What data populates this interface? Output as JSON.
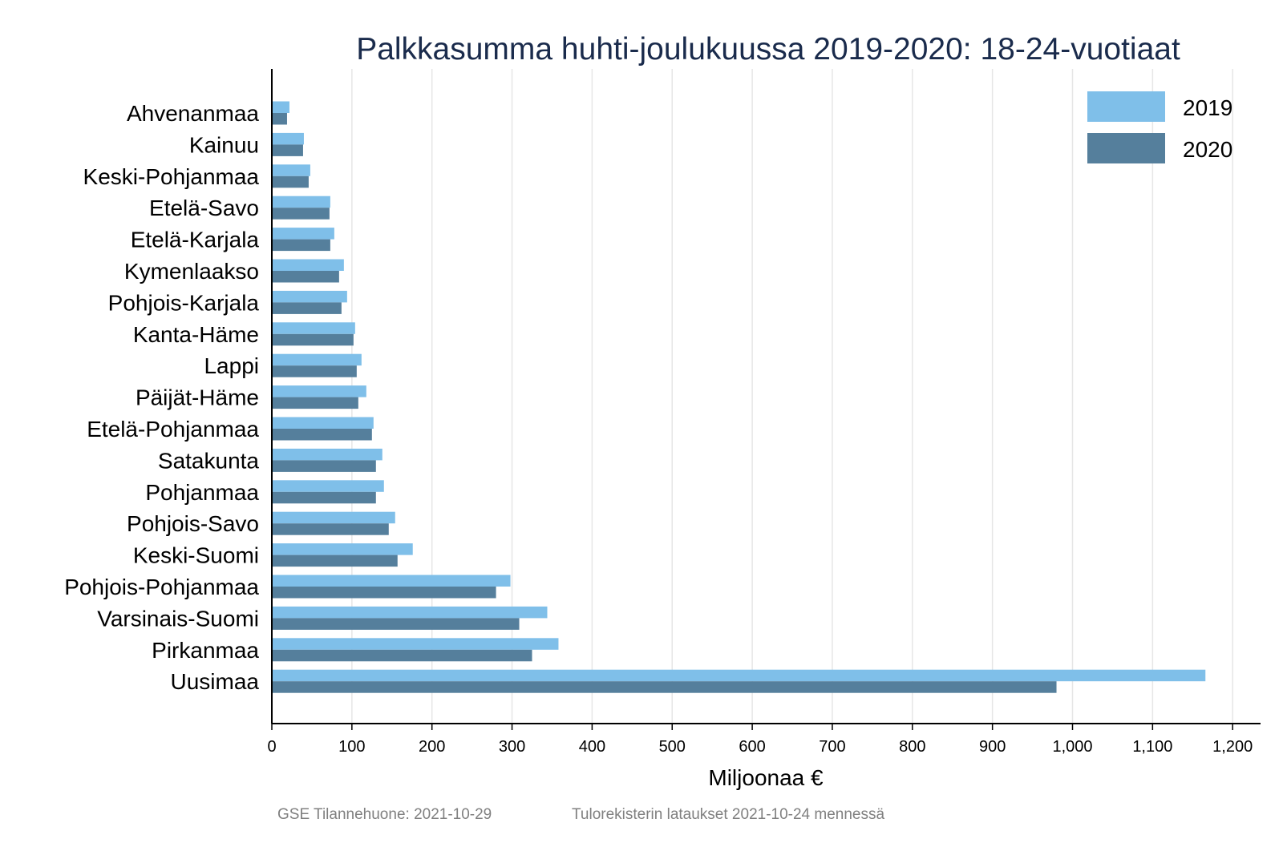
{
  "chart_data": {
    "type": "bar",
    "orientation": "horizontal",
    "title": "Palkkasumma huhti-joulukuussa 2019-2020: 18-24-vuotiaat",
    "xlabel": "Miljoonaa €",
    "ylabel": "",
    "xlim": [
      0,
      1240
    ],
    "xticks": [
      0,
      100,
      200,
      300,
      400,
      500,
      600,
      700,
      800,
      900,
      1000,
      1100,
      1200
    ],
    "xtick_labels": [
      "0",
      "100",
      "200",
      "300",
      "400",
      "500",
      "600",
      "700",
      "800",
      "900",
      "1,000",
      "1,100",
      "1,200"
    ],
    "grid": "vertical",
    "legend_position": "top-right",
    "categories": [
      "Ahvenanmaa",
      "Kainuu",
      "Keski-Pohjanmaa",
      "Etelä-Savo",
      "Etelä-Karjala",
      "Kymenlaakso",
      "Pohjois-Karjala",
      "Kanta-Häme",
      "Lappi",
      "Päijät-Häme",
      "Etelä-Pohjanmaa",
      "Satakunta",
      "Pohjanmaa",
      "Pohjois-Savo",
      "Keski-Suomi",
      "Pohjois-Pohjanmaa",
      "Varsinais-Suomi",
      "Pirkanmaa",
      "Uusimaa"
    ],
    "series": [
      {
        "name": "2019",
        "color": "#7fbfe9",
        "values": [
          22,
          40,
          48,
          73,
          78,
          90,
          94,
          104,
          112,
          118,
          127,
          138,
          140,
          154,
          176,
          298,
          344,
          358,
          1166
        ]
      },
      {
        "name": "2020",
        "color": "#557f9c",
        "values": [
          19,
          39,
          46,
          72,
          73,
          84,
          87,
          102,
          106,
          108,
          125,
          130,
          130,
          146,
          157,
          280,
          309,
          325,
          980
        ]
      }
    ]
  },
  "footer": {
    "left": "GSE Tilannehuone: 2021-10-29",
    "right": "Tulorekisterin lataukset 2021-10-24 mennessä"
  }
}
